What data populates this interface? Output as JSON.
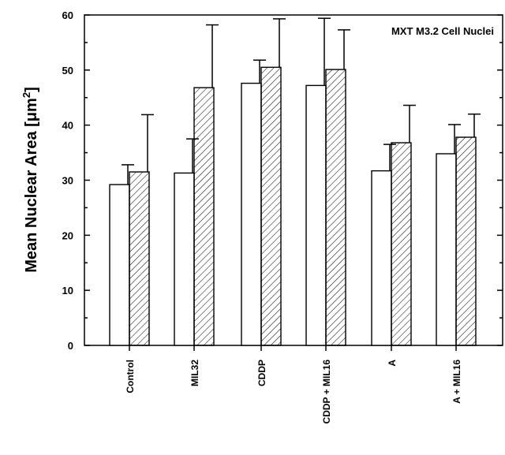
{
  "chart_data": {
    "type": "bar",
    "title": "MXT M3.2 Cell Nuclei",
    "ylabel_text": "Mean Nuclear Area [",
    "ylabel_unit": "μm",
    "ylabel_sup": "2",
    "ylabel_close": "]",
    "xlabel": "",
    "ylim": [
      0,
      60
    ],
    "yticks": [
      0,
      10,
      20,
      30,
      40,
      50,
      60
    ],
    "categories": [
      "Control",
      "MIL32",
      "CDDP",
      "CDDP + MIL16",
      "A",
      "A + MIL16"
    ],
    "series": [
      {
        "fill": "open",
        "values": [
          29.2,
          31.3,
          47.6,
          47.2,
          31.7,
          34.8
        ],
        "errors": [
          3.6,
          6.2,
          4.2,
          12.2,
          4.8,
          5.3
        ]
      },
      {
        "fill": "hatched",
        "values": [
          31.5,
          46.8,
          50.5,
          50.1,
          36.8,
          37.8
        ],
        "errors": [
          10.4,
          11.4,
          8.8,
          7.2,
          6.8,
          4.2
        ]
      }
    ],
    "grid": false
  }
}
